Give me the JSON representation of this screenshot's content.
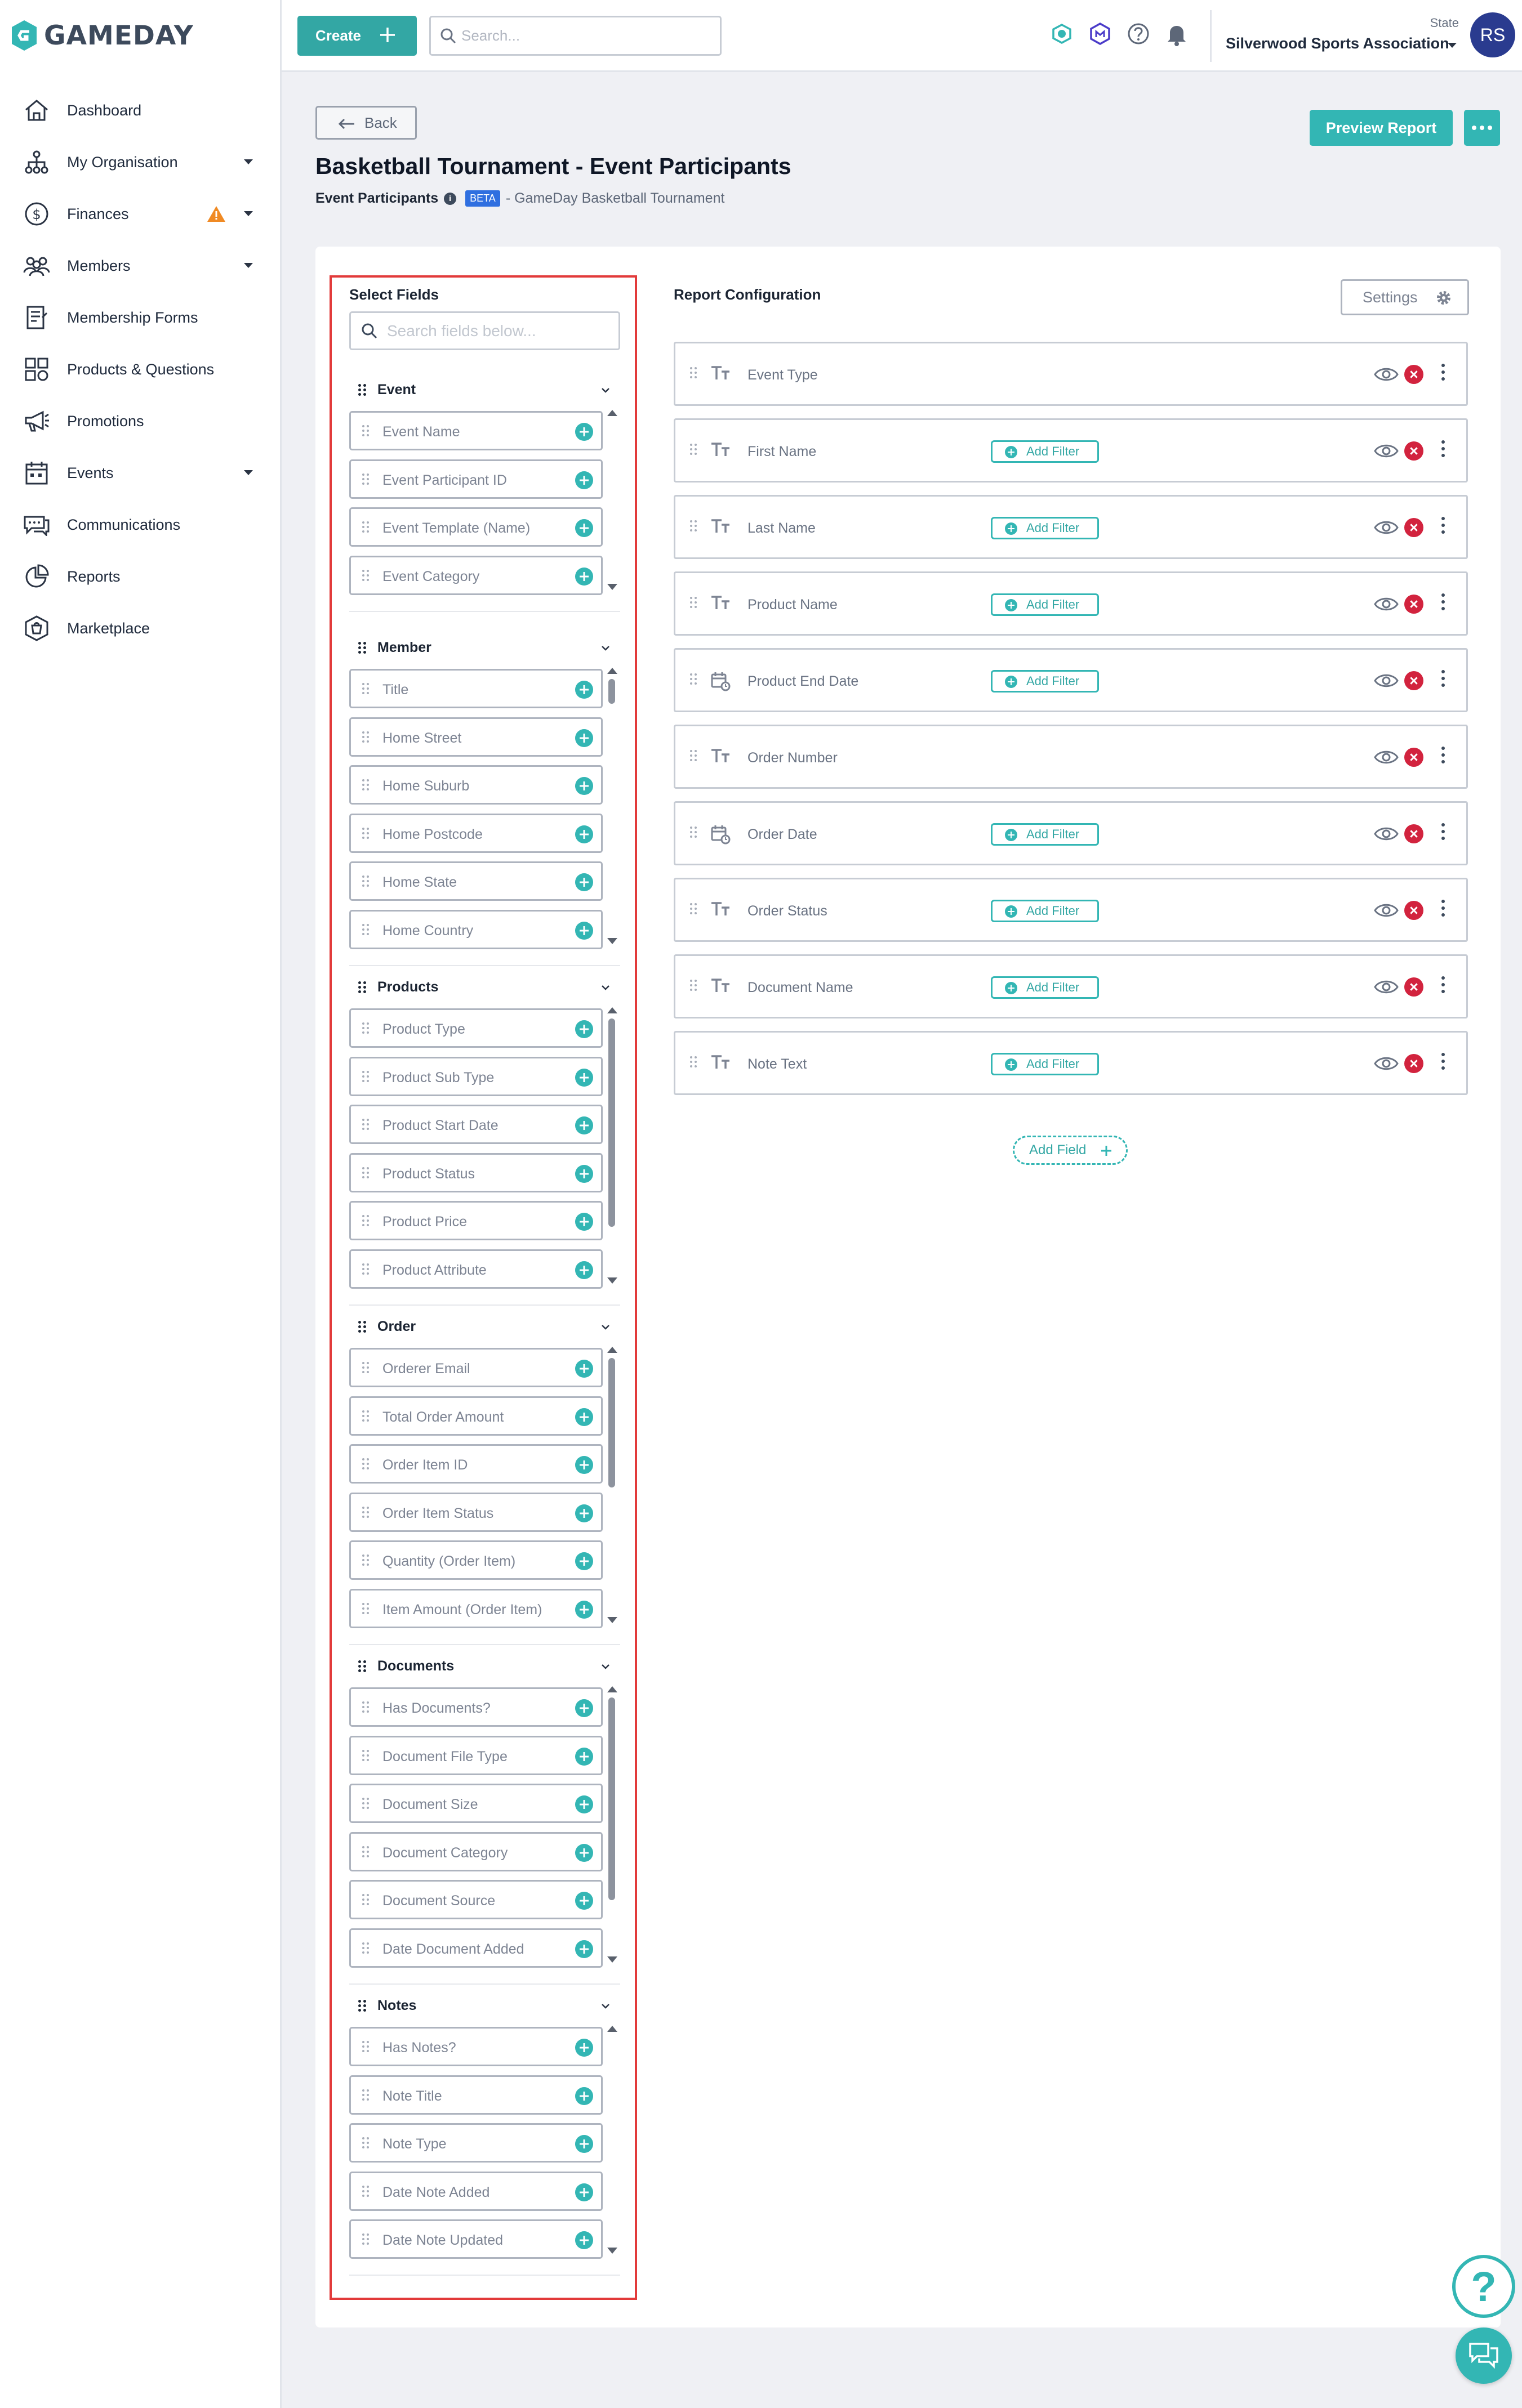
{
  "brand": {
    "name": "GAMEDAY",
    "accent": "#33b6b4",
    "alert": "#d2233e"
  },
  "sidebar": {
    "items": [
      {
        "label": "Dashboard",
        "icon": "home-icon",
        "caret": false
      },
      {
        "label": "My Organisation",
        "icon": "org-tree-icon",
        "caret": true
      },
      {
        "label": "Finances",
        "icon": "dollar-icon",
        "caret": true,
        "warning": true
      },
      {
        "label": "Members",
        "icon": "members-icon",
        "caret": true
      },
      {
        "label": "Membership Forms",
        "icon": "form-icon",
        "caret": false
      },
      {
        "label": "Products & Questions",
        "icon": "products-icon",
        "caret": false
      },
      {
        "label": "Promotions",
        "icon": "megaphone-icon",
        "caret": false
      },
      {
        "label": "Events",
        "icon": "calendar-icon",
        "caret": true
      },
      {
        "label": "Communications",
        "icon": "chat-bubble-icon",
        "caret": false
      },
      {
        "label": "Reports",
        "icon": "pie-chart-icon",
        "caret": false
      },
      {
        "label": "Marketplace",
        "icon": "marketplace-icon",
        "caret": false
      }
    ]
  },
  "topbar": {
    "create_label": "Create",
    "search_placeholder": "Search...",
    "org_level": "State",
    "org_name": "Silverwood Sports Association",
    "avatar_initials": "RS"
  },
  "header": {
    "back_label": "Back",
    "preview_label": "Preview Report",
    "title": "Basketball Tournament - Event Participants",
    "subtitle_main": "Event Participants",
    "badge": "BETA",
    "subtitle_rest": "- GameDay Basketball Tournament"
  },
  "select_fields": {
    "title": "Select Fields",
    "search_placeholder": "Search fields below...",
    "groups": [
      {
        "name": "Event",
        "fields": [
          "Event Name",
          "Event Participant ID",
          "Event Template (Name)",
          "Event Category"
        ]
      },
      {
        "name": "Member",
        "fields": [
          "Title",
          "Home Street",
          "Home Suburb",
          "Home Postcode",
          "Home State",
          "Home Country"
        ]
      },
      {
        "name": "Products",
        "fields": [
          "Product Type",
          "Product Sub Type",
          "Product Start Date",
          "Product Status",
          "Product Price",
          "Product Attribute"
        ]
      },
      {
        "name": "Order",
        "fields": [
          "Orderer Email",
          "Total Order Amount",
          "Order Item ID",
          "Order Item Status",
          "Quantity (Order Item)",
          "Item Amount (Order Item)"
        ]
      },
      {
        "name": "Documents",
        "fields": [
          "Has Documents?",
          "Document File Type",
          "Document Size",
          "Document Category",
          "Document Source",
          "Date Document Added"
        ]
      },
      {
        "name": "Notes",
        "fields": [
          "Has Notes?",
          "Note Title",
          "Note Type",
          "Date Note Added",
          "Date Note Updated"
        ]
      }
    ]
  },
  "report_config": {
    "title": "Report Configuration",
    "settings_label": "Settings",
    "add_filter_label": "Add Filter",
    "add_field_label": "Add Field",
    "rows": [
      {
        "label": "Event Type",
        "type": "text-icon",
        "filter": false
      },
      {
        "label": "First Name",
        "type": "text-icon",
        "filter": true
      },
      {
        "label": "Last Name",
        "type": "text-icon",
        "filter": true
      },
      {
        "label": "Product Name",
        "type": "text-icon",
        "filter": true
      },
      {
        "label": "Product End Date",
        "type": "date-icon",
        "filter": true
      },
      {
        "label": "Order Number",
        "type": "text-icon",
        "filter": false
      },
      {
        "label": "Order Date",
        "type": "date-icon",
        "filter": true
      },
      {
        "label": "Order Status",
        "type": "text-icon",
        "filter": true
      },
      {
        "label": "Document Name",
        "type": "text-icon",
        "filter": true
      },
      {
        "label": "Note Text",
        "type": "text-icon",
        "filter": true
      }
    ]
  }
}
